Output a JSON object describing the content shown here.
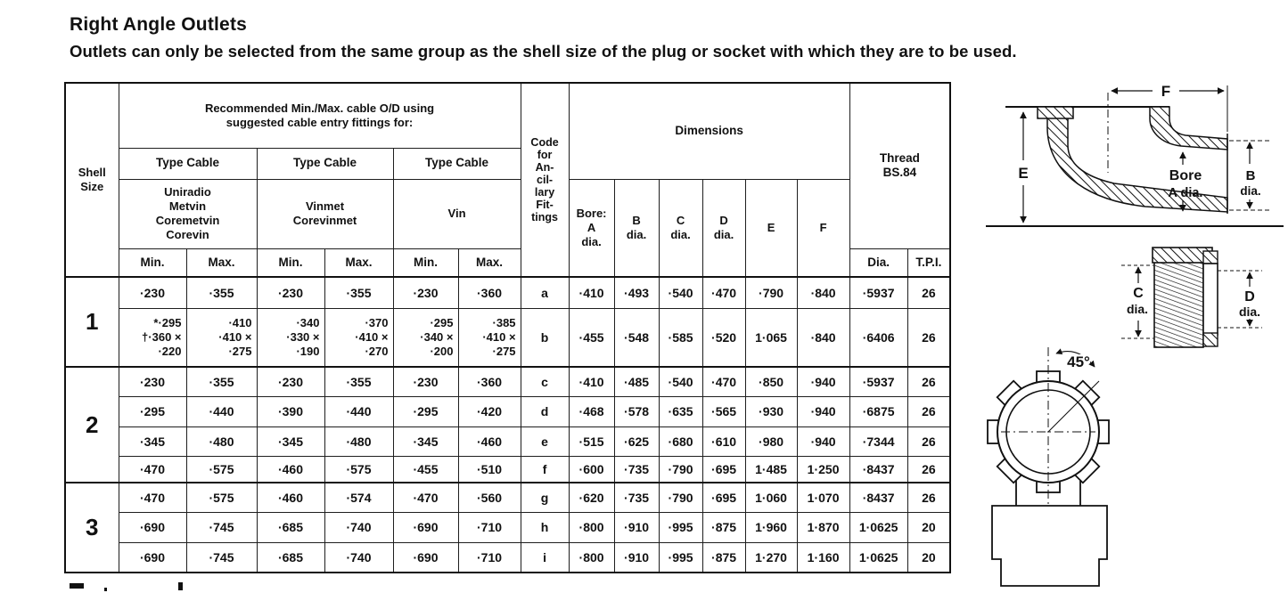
{
  "page": {
    "title": "Right Angle Outlets",
    "subtitle": "Outlets can only be selected from the same group as the shell size of the plug or socket with which they are to be used."
  },
  "table": {
    "header": {
      "shell_size": "Shell\nSize",
      "recommended": "Recommended Min./Max. cable O/D using\nsuggested cable entry fittings for:",
      "type_cable": "Type Cable",
      "brands": [
        "Uniradio\nMetvin\nCoremetvin\nCorevin",
        "Vinmet\nCorevinmet",
        "Vin"
      ],
      "min": "Min.",
      "max": "Max.",
      "code": "Code\nfor\nAn-\ncil-\nlary\nFit-\ntings",
      "dimensions": "Dimensions",
      "dim_cols": [
        "Bore:\nA\ndia.",
        "B\ndia.",
        "C\ndia.",
        "D\ndia.",
        "E",
        "F"
      ],
      "thread": "Thread\nBS.84",
      "thread_cols": [
        "Dia.",
        "T.P.I."
      ]
    },
    "shells": [
      {
        "label": "1",
        "span": 2
      },
      {
        "label": "2",
        "span": 4
      },
      {
        "label": "3",
        "span": 3
      }
    ],
    "rows": [
      {
        "cells": [
          "·230",
          "·355",
          "·230",
          "·355",
          "·230",
          "·360",
          "a",
          "·410",
          "·493",
          "·540",
          "·470",
          "·790",
          "·840",
          "·5937",
          "26"
        ]
      },
      {
        "cells": [
          "*·295\n†·360 ×\n·220",
          "·410\n·410 ×\n·275",
          "·340\n·330 ×\n·190",
          "·370\n·410 ×\n·270",
          "·295\n·340 ×\n·200",
          "·385\n·410 ×\n·275",
          "b",
          "·455",
          "·548",
          "·585",
          "·520",
          "1·065",
          "·840",
          "·6406",
          "26"
        ]
      },
      {
        "cells": [
          "·230",
          "·355",
          "·230",
          "·355",
          "·230",
          "·360",
          "c",
          "·410",
          "·485",
          "·540",
          "·470",
          "·850",
          "·940",
          "·5937",
          "26"
        ]
      },
      {
        "cells": [
          "·295",
          "·440",
          "·390",
          "·440",
          "·295",
          "·420",
          "d",
          "·468",
          "·578",
          "·635",
          "·565",
          "·930",
          "·940",
          "·6875",
          "26"
        ]
      },
      {
        "cells": [
          "·345",
          "·480",
          "·345",
          "·480",
          "·345",
          "·460",
          "e",
          "·515",
          "·625",
          "·680",
          "·610",
          "·980",
          "·940",
          "·7344",
          "26"
        ]
      },
      {
        "cells": [
          "·470",
          "·575",
          "·460",
          "·575",
          "·455",
          "·510",
          "f",
          "·600",
          "·735",
          "·790",
          "·695",
          "1·485",
          "1·250",
          "·8437",
          "26"
        ]
      },
      {
        "cells": [
          "·470",
          "·575",
          "·460",
          "·574",
          "·470",
          "·560",
          "g",
          "·620",
          "·735",
          "·790",
          "·695",
          "1·060",
          "1·070",
          "·8437",
          "26"
        ]
      },
      {
        "cells": [
          "·690",
          "·745",
          "·685",
          "·740",
          "·690",
          "·710",
          "h",
          "·800",
          "·910",
          "·995",
          "·875",
          "1·960",
          "1·870",
          "1·0625",
          "20"
        ]
      },
      {
        "cells": [
          "·690",
          "·745",
          "·685",
          "·740",
          "·690",
          "·710",
          "i",
          "·800",
          "·910",
          "·995",
          "·875",
          "1·270",
          "1·160",
          "1·0625",
          "20"
        ]
      }
    ]
  },
  "diagrams": {
    "elbow": {
      "f": "F",
      "e": "E",
      "bore_line1": "Bore",
      "bore_line2": "A dia.",
      "b_line1": "B",
      "b_line2": "dia."
    },
    "bush": {
      "c_line1": "C",
      "c_line2": "dia.",
      "d_line1": "D",
      "d_line2": "dia."
    },
    "top_view": {
      "angle": "45°"
    }
  },
  "colors": {
    "ink": "#111111",
    "paper": "#ffffff"
  }
}
